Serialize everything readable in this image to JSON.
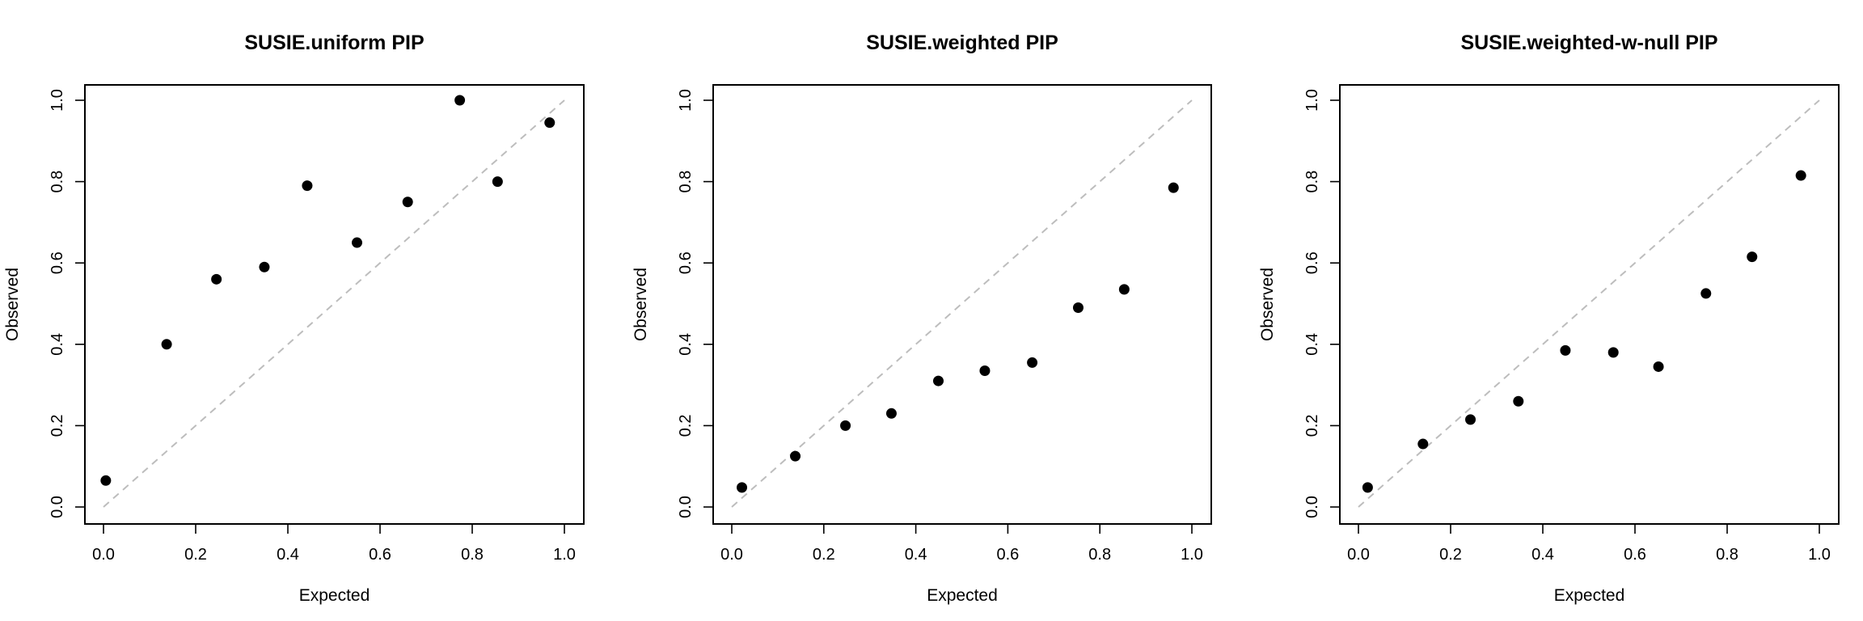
{
  "chart_data": [
    {
      "type": "scatter",
      "title": "SUSIE.uniform PIP",
      "xlabel": "Expected",
      "ylabel": "Observed",
      "xlim": [
        0,
        1
      ],
      "ylim": [
        0,
        1
      ],
      "xticks": [
        "0.0",
        "0.2",
        "0.4",
        "0.6",
        "0.8",
        "1.0"
      ],
      "yticks": [
        "0.0",
        "0.2",
        "0.4",
        "0.6",
        "0.8",
        "1.0"
      ],
      "reference_line": "y = x (dashed, gray)",
      "grid": false,
      "points": [
        {
          "x": 0.005,
          "y": 0.065
        },
        {
          "x": 0.137,
          "y": 0.4
        },
        {
          "x": 0.245,
          "y": 0.56
        },
        {
          "x": 0.349,
          "y": 0.59
        },
        {
          "x": 0.442,
          "y": 0.79
        },
        {
          "x": 0.55,
          "y": 0.65
        },
        {
          "x": 0.66,
          "y": 0.75
        },
        {
          "x": 0.773,
          "y": 1.0
        },
        {
          "x": 0.855,
          "y": 0.8
        },
        {
          "x": 0.968,
          "y": 0.945
        }
      ]
    },
    {
      "type": "scatter",
      "title": "SUSIE.weighted PIP",
      "xlabel": "Expected",
      "ylabel": "Observed",
      "xlim": [
        0,
        1
      ],
      "ylim": [
        0,
        1
      ],
      "xticks": [
        "0.0",
        "0.2",
        "0.4",
        "0.6",
        "0.8",
        "1.0"
      ],
      "yticks": [
        "0.0",
        "0.2",
        "0.4",
        "0.6",
        "0.8",
        "1.0"
      ],
      "reference_line": "y = x (dashed, gray)",
      "grid": false,
      "points": [
        {
          "x": 0.022,
          "y": 0.048
        },
        {
          "x": 0.138,
          "y": 0.125
        },
        {
          "x": 0.247,
          "y": 0.2
        },
        {
          "x": 0.347,
          "y": 0.23
        },
        {
          "x": 0.449,
          "y": 0.31
        },
        {
          "x": 0.55,
          "y": 0.335
        },
        {
          "x": 0.653,
          "y": 0.355
        },
        {
          "x": 0.753,
          "y": 0.49
        },
        {
          "x": 0.853,
          "y": 0.535
        },
        {
          "x": 0.96,
          "y": 0.785
        }
      ]
    },
    {
      "type": "scatter",
      "title": "SUSIE.weighted-w-null PIP",
      "xlabel": "Expected",
      "ylabel": "Observed",
      "xlim": [
        0,
        1
      ],
      "ylim": [
        0,
        1
      ],
      "xticks": [
        "0.0",
        "0.2",
        "0.4",
        "0.6",
        "0.8",
        "1.0"
      ],
      "yticks": [
        "0.0",
        "0.2",
        "0.4",
        "0.6",
        "0.8",
        "1.0"
      ],
      "reference_line": "y = x (dashed, gray)",
      "grid": false,
      "points": [
        {
          "x": 0.02,
          "y": 0.048
        },
        {
          "x": 0.14,
          "y": 0.155
        },
        {
          "x": 0.243,
          "y": 0.215
        },
        {
          "x": 0.347,
          "y": 0.26
        },
        {
          "x": 0.449,
          "y": 0.385
        },
        {
          "x": 0.553,
          "y": 0.38
        },
        {
          "x": 0.651,
          "y": 0.345
        },
        {
          "x": 0.754,
          "y": 0.525
        },
        {
          "x": 0.854,
          "y": 0.615
        },
        {
          "x": 0.96,
          "y": 0.815
        }
      ]
    }
  ]
}
